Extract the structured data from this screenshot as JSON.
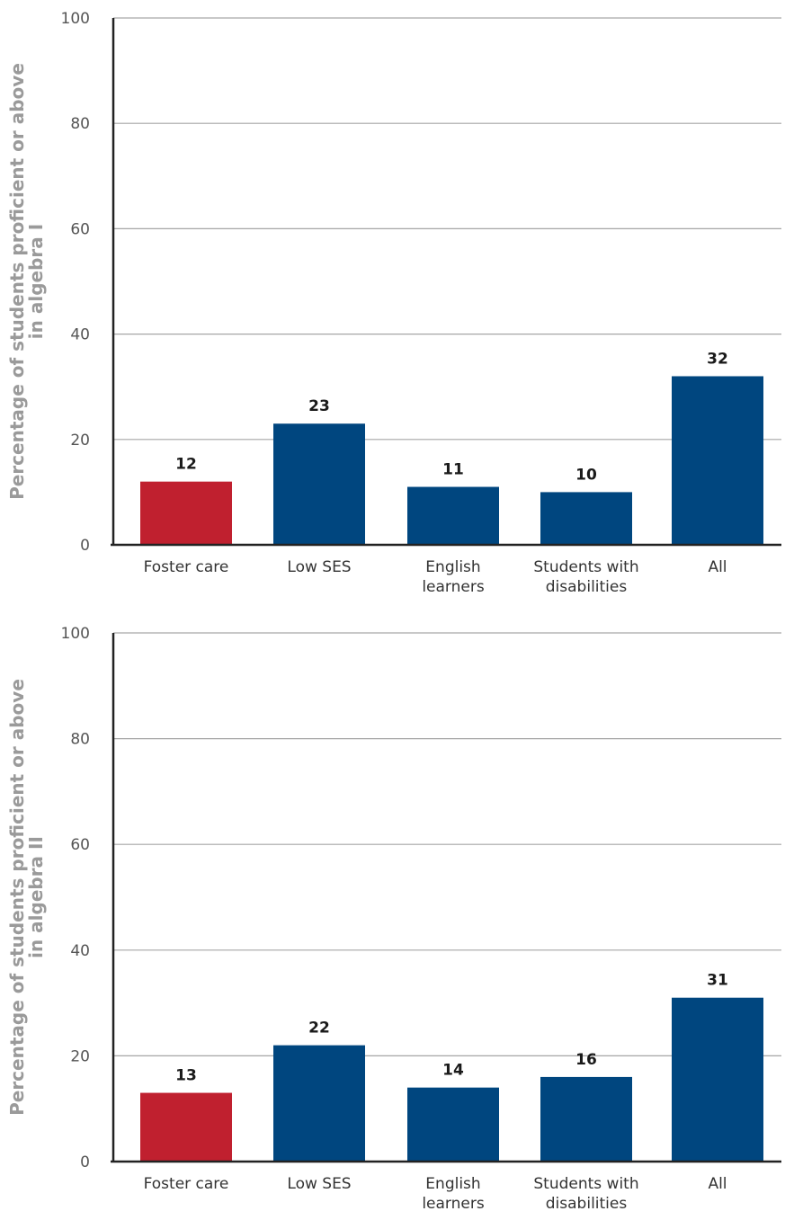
{
  "colors": {
    "highlight": "#c0202f",
    "primary": "#00467f"
  },
  "chart_data": [
    {
      "type": "bar",
      "ylabel": [
        "Percentage of students proficient or above",
        "in algebra I"
      ],
      "ylim": [
        0,
        100
      ],
      "yticks": [
        0,
        20,
        40,
        60,
        80,
        100
      ],
      "grid": true,
      "categories": [
        [
          "Foster care"
        ],
        [
          "Low SES"
        ],
        [
          "English",
          "learners"
        ],
        [
          "Students with",
          "disabilities"
        ],
        [
          "All"
        ]
      ],
      "values": [
        12,
        23,
        11,
        10,
        32
      ],
      "bar_colors": [
        "highlight",
        "primary",
        "primary",
        "primary",
        "primary"
      ]
    },
    {
      "type": "bar",
      "ylabel": [
        "Percentage of students proficient or above",
        "in algebra II"
      ],
      "ylim": [
        0,
        100
      ],
      "yticks": [
        0,
        20,
        40,
        60,
        80,
        100
      ],
      "grid": true,
      "categories": [
        [
          "Foster care"
        ],
        [
          "Low SES"
        ],
        [
          "English",
          "learners"
        ],
        [
          "Students with",
          "disabilities"
        ],
        [
          "All"
        ]
      ],
      "values": [
        13,
        22,
        14,
        16,
        31
      ],
      "bar_colors": [
        "highlight",
        "primary",
        "primary",
        "primary",
        "primary"
      ]
    }
  ]
}
